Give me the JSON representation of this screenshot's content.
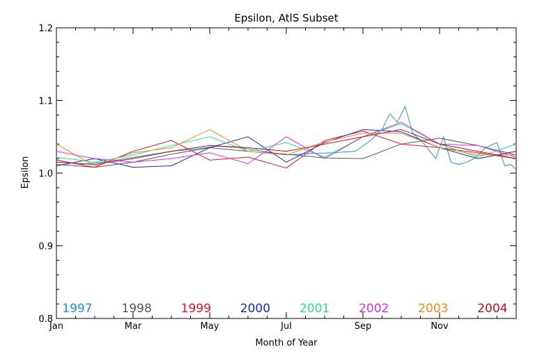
{
  "chart_data": {
    "type": "line",
    "title": "Epsilon, AtlS Subset",
    "xlabel": "Month of Year",
    "ylabel": "Epsilon",
    "xlim": [
      0,
      12
    ],
    "ylim": [
      0.8,
      1.2
    ],
    "x_ticks": [
      {
        "value": 0,
        "label": "Jan"
      },
      {
        "value": 2,
        "label": "Mar"
      },
      {
        "value": 4,
        "label": "May"
      },
      {
        "value": 6,
        "label": "Jul"
      },
      {
        "value": 8,
        "label": "Sep"
      },
      {
        "value": 10,
        "label": "Nov"
      }
    ],
    "y_ticks": [
      {
        "value": 0.8,
        "label": "0.8"
      },
      {
        "value": 0.9,
        "label": "0.9"
      },
      {
        "value": 1.0,
        "label": "1.0"
      },
      {
        "value": 1.1,
        "label": "1.1"
      },
      {
        "value": 1.2,
        "label": "1.2"
      }
    ],
    "grid": false,
    "legend_position": "bottom",
    "series": [
      {
        "name": "1997",
        "color": "#1e90d8",
        "x": [
          0,
          0.6,
          1.2,
          1.8,
          2.4,
          3.0,
          3.6,
          4.2,
          4.8,
          5.4,
          6.0,
          6.6,
          7.2,
          7.8,
          8.2,
          8.5,
          8.7,
          8.9,
          9.1,
          9.3,
          9.6,
          9.9,
          10.1,
          10.3,
          10.5,
          10.7,
          10.9,
          11.2,
          11.5,
          11.7,
          11.85,
          12.0
        ],
        "y": [
          1.018,
          1.012,
          1.015,
          1.02,
          1.025,
          1.03,
          1.033,
          1.037,
          1.035,
          1.03,
          1.025,
          1.027,
          1.028,
          1.03,
          1.045,
          1.06,
          1.082,
          1.07,
          1.092,
          1.055,
          1.04,
          1.02,
          1.05,
          1.015,
          1.012,
          1.015,
          1.02,
          1.035,
          1.042,
          1.01,
          1.012,
          1.005
        ]
      },
      {
        "name": "1998",
        "color": "#555555",
        "x": [
          0,
          1,
          2,
          3,
          4,
          5,
          6,
          7,
          8,
          9,
          10,
          11,
          12
        ],
        "y": [
          1.012,
          1.008,
          1.015,
          1.026,
          1.035,
          1.03,
          1.026,
          1.021,
          1.02,
          1.04,
          1.048,
          1.038,
          1.025
        ]
      },
      {
        "name": "1999",
        "color": "#e0141e",
        "x": [
          0,
          1,
          2,
          3,
          4,
          5,
          6,
          7,
          8,
          9,
          10,
          11,
          12
        ],
        "y": [
          1.018,
          1.008,
          1.03,
          1.045,
          1.018,
          1.022,
          1.007,
          1.045,
          1.058,
          1.04,
          1.035,
          1.028,
          1.02
        ]
      },
      {
        "name": "2000",
        "color": "#1428c8",
        "x": [
          0,
          1,
          2,
          3,
          4,
          5,
          6,
          7,
          8,
          9,
          10,
          11,
          12
        ],
        "y": [
          1.01,
          1.02,
          1.008,
          1.01,
          1.035,
          1.05,
          1.015,
          1.042,
          1.06,
          1.057,
          1.035,
          1.02,
          1.03
        ]
      },
      {
        "name": "2001",
        "color": "#1ee68c",
        "x": [
          0,
          1,
          2,
          3,
          4,
          5,
          6,
          7,
          8,
          9,
          10,
          11,
          12
        ],
        "y": [
          1.022,
          1.015,
          1.025,
          1.038,
          1.05,
          1.03,
          1.042,
          1.022,
          1.05,
          1.068,
          1.04,
          1.022,
          1.04
        ]
      },
      {
        "name": "2002",
        "color": "#e628e6",
        "x": [
          0,
          1,
          2,
          3,
          4,
          5,
          6,
          7,
          8,
          9,
          10,
          11,
          12
        ],
        "y": [
          1.03,
          1.02,
          1.015,
          1.02,
          1.028,
          1.013,
          1.05,
          1.02,
          1.05,
          1.07,
          1.04,
          1.038,
          1.022
        ]
      },
      {
        "name": "2003",
        "color": "#f08c14",
        "x": [
          0,
          1,
          2,
          3,
          4,
          5,
          6,
          7,
          8,
          9,
          10,
          11,
          12
        ],
        "y": [
          1.04,
          1.01,
          1.028,
          1.035,
          1.06,
          1.03,
          1.025,
          1.043,
          1.055,
          1.055,
          1.035,
          1.025,
          1.025
        ]
      },
      {
        "name": "2004",
        "color": "#c80a1e",
        "x": [
          0,
          1,
          2,
          3,
          4,
          5,
          6,
          7,
          8,
          9,
          10,
          11,
          12
        ],
        "y": [
          1.015,
          1.012,
          1.02,
          1.03,
          1.038,
          1.035,
          1.03,
          1.04,
          1.05,
          1.06,
          1.04,
          1.03,
          1.02
        ]
      }
    ]
  }
}
